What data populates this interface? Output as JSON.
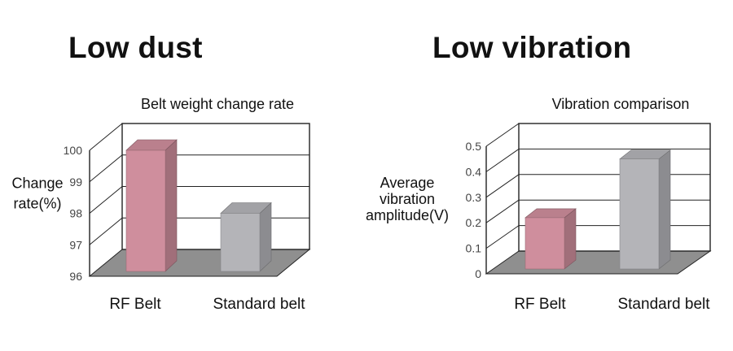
{
  "headings": {
    "left": "Low dust",
    "right": "Low vibration"
  },
  "colors": {
    "rf_belt": "#cf8e9d",
    "standard_belt": "#b4b4b8",
    "floor": "#8f8f8f",
    "frame": "#222222"
  },
  "chart_data": [
    {
      "type": "bar",
      "title": "Belt weight change rate",
      "xlabel": "",
      "ylabel": "Change rate(%)",
      "ylabel_lines": [
        "Change",
        "rate(%)"
      ],
      "categories": [
        "RF Belt",
        "Standard belt"
      ],
      "values": [
        100,
        98
      ],
      "ylim": [
        96,
        100
      ],
      "yticks": [
        "96",
        "97",
        "98",
        "99",
        "100"
      ],
      "grid": true,
      "style": "3d"
    },
    {
      "type": "bar",
      "title": "Vibration comparison",
      "xlabel": "",
      "ylabel": "Average vibration amplitude(V)",
      "ylabel_lines": [
        "Average",
        "vibration",
        "amplitude(V)"
      ],
      "categories": [
        "RF Belt",
        "Standard belt"
      ],
      "values": [
        0.22,
        0.45
      ],
      "ylim": [
        0,
        0.5
      ],
      "yticks": [
        "0",
        "0.1",
        "0.2",
        "0.3",
        "0.4",
        "0.5"
      ],
      "grid": true,
      "style": "3d"
    }
  ]
}
